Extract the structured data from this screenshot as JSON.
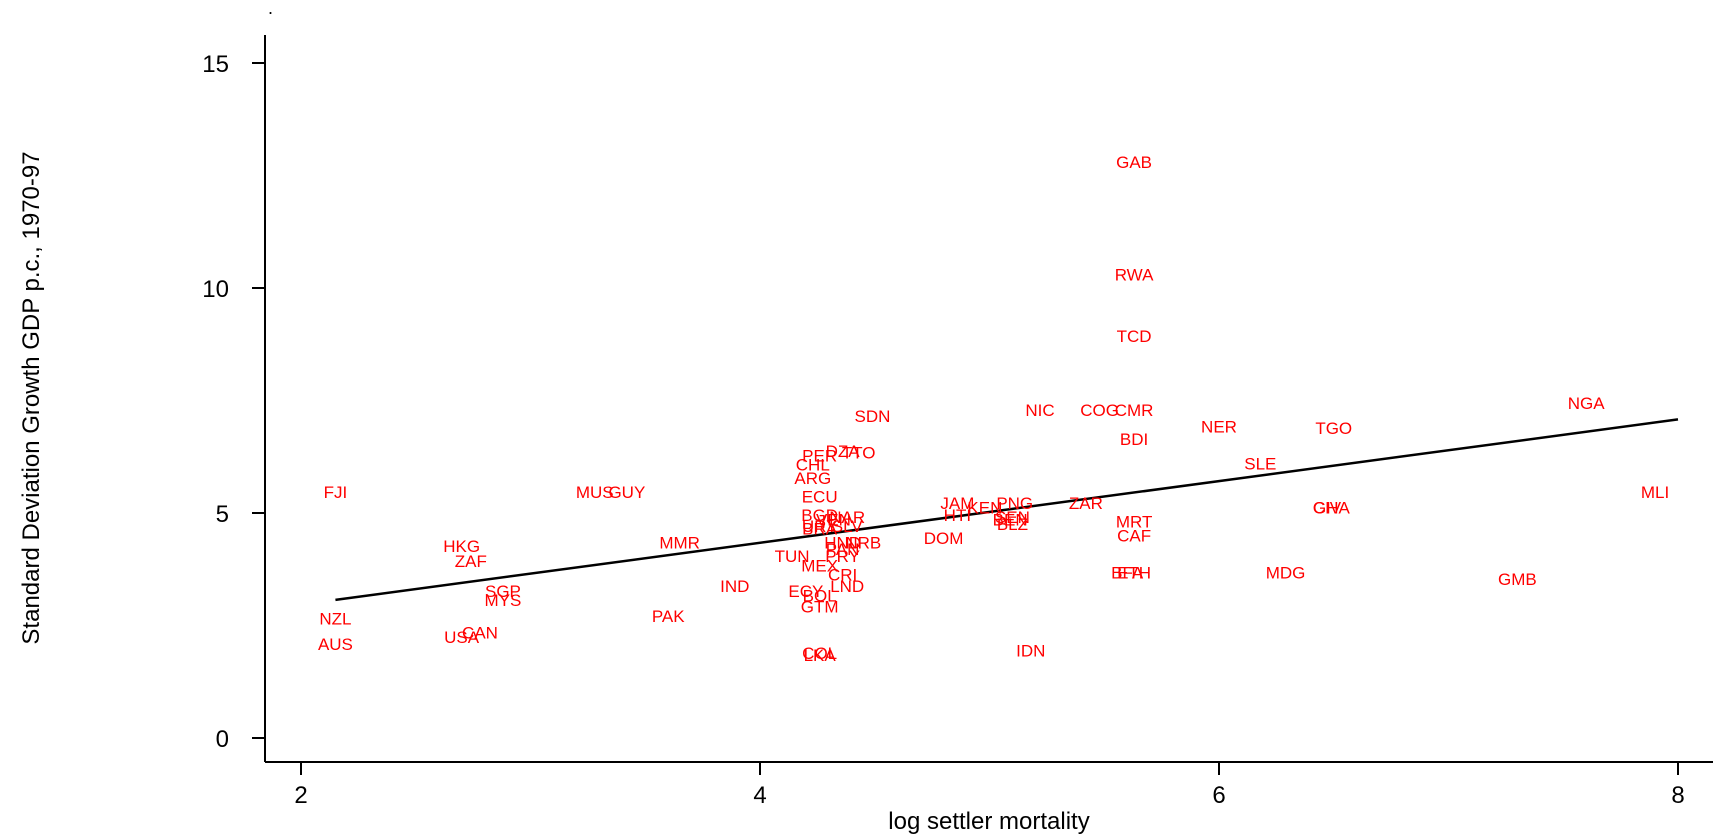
{
  "chart_data": {
    "type": "scatter",
    "title": "",
    "corner_mark": ".",
    "xlabel": "log settler mortality",
    "ylabel": "Standard Deviation Growth GDP p.c., 1970-97",
    "xlim": [
      1.7,
      8.3
    ],
    "ylim": [
      -0.5,
      16
    ],
    "xticks": [
      2,
      4,
      6,
      8
    ],
    "yticks": [
      0,
      5,
      10,
      15
    ],
    "grid": false,
    "legend": "none",
    "label_color": "#ff0000",
    "fit_color": "#000000",
    "points": [
      {
        "label": "GAB",
        "x": 5.63,
        "y": 12.8
      },
      {
        "label": "RWA",
        "x": 5.63,
        "y": 10.3
      },
      {
        "label": "TCD",
        "x": 5.63,
        "y": 8.93
      },
      {
        "label": "NIC",
        "x": 5.22,
        "y": 7.29
      },
      {
        "label": "COG",
        "x": 5.48,
        "y": 7.29
      },
      {
        "label": "CMR",
        "x": 5.63,
        "y": 7.29
      },
      {
        "label": "NGA",
        "x": 7.6,
        "y": 7.44
      },
      {
        "label": "NER",
        "x": 6.0,
        "y": 6.92
      },
      {
        "label": "TGO",
        "x": 6.5,
        "y": 6.89
      },
      {
        "label": "BDI",
        "x": 5.63,
        "y": 6.64
      },
      {
        "label": "SLE",
        "x": 6.18,
        "y": 6.1
      },
      {
        "label": "SDN",
        "x": 4.49,
        "y": 7.16
      },
      {
        "label": "DZA",
        "x": 4.36,
        "y": 6.38
      },
      {
        "label": "TTO",
        "x": 4.43,
        "y": 6.34
      },
      {
        "label": "PER",
        "x": 4.26,
        "y": 6.28
      },
      {
        "label": "CHL",
        "x": 4.23,
        "y": 6.08
      },
      {
        "label": "ARG",
        "x": 4.23,
        "y": 5.78
      },
      {
        "label": "FJI",
        "x": 2.15,
        "y": 5.47
      },
      {
        "label": "MUS",
        "x": 3.28,
        "y": 5.47
      },
      {
        "label": "GUY",
        "x": 3.42,
        "y": 5.47
      },
      {
        "label": "MLI",
        "x": 7.9,
        "y": 5.47
      },
      {
        "label": "ECU",
        "x": 4.26,
        "y": 5.37
      },
      {
        "label": "JAM",
        "x": 4.86,
        "y": 5.22
      },
      {
        "label": "KEN",
        "x": 4.98,
        "y": 5.12
      },
      {
        "label": "PNG",
        "x": 5.11,
        "y": 5.22
      },
      {
        "label": "ZAR",
        "x": 5.42,
        "y": 5.22
      },
      {
        "label": "GHA",
        "x": 6.49,
        "y": 5.12
      },
      {
        "label": "CIV",
        "x": 6.47,
        "y": 5.12
      },
      {
        "label": "BGD",
        "x": 4.26,
        "y": 4.96
      },
      {
        "label": "VEN",
        "x": 4.32,
        "y": 4.86
      },
      {
        "label": "NAR",
        "x": 4.38,
        "y": 4.91
      },
      {
        "label": "HTI",
        "x": 4.86,
        "y": 4.96
      },
      {
        "label": "SEN",
        "x": 5.1,
        "y": 4.91
      },
      {
        "label": "BEN",
        "x": 5.09,
        "y": 4.86
      },
      {
        "label": "BLZ",
        "x": 5.1,
        "y": 4.76
      },
      {
        "label": "MRT",
        "x": 5.63,
        "y": 4.81
      },
      {
        "label": "URY",
        "x": 4.26,
        "y": 4.71
      },
      {
        "label": "BRA",
        "x": 4.26,
        "y": 4.66
      },
      {
        "label": "SLV",
        "x": 4.38,
        "y": 4.71
      },
      {
        "label": "DOM",
        "x": 4.8,
        "y": 4.45
      },
      {
        "label": "CAF",
        "x": 5.63,
        "y": 4.5
      },
      {
        "label": "HND",
        "x": 4.36,
        "y": 4.35
      },
      {
        "label": "NRB",
        "x": 4.45,
        "y": 4.35
      },
      {
        "label": "PAN",
        "x": 4.36,
        "y": 4.2
      },
      {
        "label": "PRY",
        "x": 4.36,
        "y": 4.04
      },
      {
        "label": "MMR",
        "x": 3.65,
        "y": 4.35
      },
      {
        "label": "HKG",
        "x": 2.7,
        "y": 4.27
      },
      {
        "label": "ZAF",
        "x": 2.74,
        "y": 3.93
      },
      {
        "label": "TUN",
        "x": 4.14,
        "y": 4.04
      },
      {
        "label": "MEX",
        "x": 4.26,
        "y": 3.83
      },
      {
        "label": "CRI",
        "x": 4.36,
        "y": 3.63
      },
      {
        "label": "BFA",
        "x": 5.6,
        "y": 3.68
      },
      {
        "label": "ETH",
        "x": 5.63,
        "y": 3.68
      },
      {
        "label": "MDG",
        "x": 6.29,
        "y": 3.68
      },
      {
        "label": "GMB",
        "x": 7.3,
        "y": 3.53
      },
      {
        "label": "IND",
        "x": 3.89,
        "y": 3.38
      },
      {
        "label": "ECY",
        "x": 4.2,
        "y": 3.27
      },
      {
        "label": "LND",
        "x": 4.38,
        "y": 3.38
      },
      {
        "label": "BOL",
        "x": 4.26,
        "y": 3.17
      },
      {
        "label": "SGP",
        "x": 2.88,
        "y": 3.27
      },
      {
        "label": "MYS",
        "x": 2.88,
        "y": 3.07
      },
      {
        "label": "GTM",
        "x": 4.26,
        "y": 2.92
      },
      {
        "label": "PAK",
        "x": 3.6,
        "y": 2.71
      },
      {
        "label": "NZL",
        "x": 2.15,
        "y": 2.66
      },
      {
        "label": "CAN",
        "x": 2.78,
        "y": 2.35
      },
      {
        "label": "USA",
        "x": 2.7,
        "y": 2.25
      },
      {
        "label": "AUS",
        "x": 2.15,
        "y": 2.09
      },
      {
        "label": "IDN",
        "x": 5.18,
        "y": 1.94
      },
      {
        "label": "COL",
        "x": 4.26,
        "y": 1.89
      },
      {
        "label": "LKA",
        "x": 4.26,
        "y": 1.84
      }
    ],
    "fit": {
      "x1": 2.15,
      "y1": 3.07,
      "x2": 8.0,
      "y2": 7.08
    }
  }
}
